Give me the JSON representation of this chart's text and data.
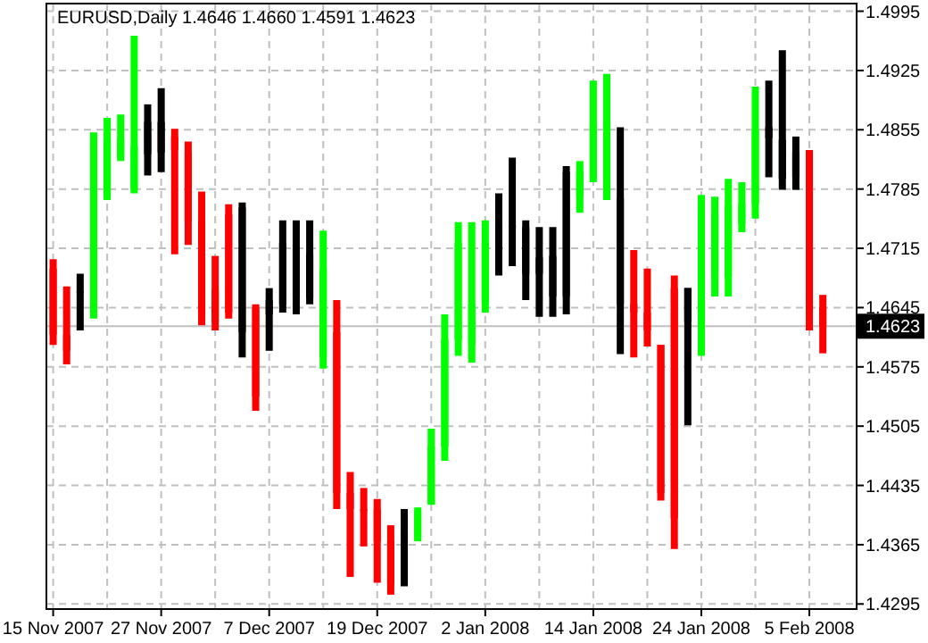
{
  "chart_data": {
    "type": "candlestick",
    "title": "EURUSD,Daily  1.4646 1.4660 1.4591 1.4623",
    "categories": [
      "15 Nov 2007",
      null,
      null,
      null,
      null,
      null,
      null,
      null,
      "27 Nov 2007",
      null,
      null,
      null,
      null,
      null,
      null,
      null,
      "7 Dec 2007",
      null,
      null,
      null,
      null,
      null,
      null,
      null,
      "19 Dec 2007",
      null,
      null,
      null,
      null,
      null,
      null,
      null,
      "2 Jan 2008",
      null,
      null,
      null,
      null,
      null,
      null,
      null,
      "14 Jan 2008",
      null,
      null,
      null,
      null,
      null,
      null,
      null,
      "24 Jan 2008",
      null,
      null,
      null,
      null,
      null,
      null,
      null,
      "5 Feb 2008",
      null
    ],
    "ohlc": [
      [
        1.4691,
        1.4702,
        1.4601,
        1.4613
      ],
      [
        1.4613,
        1.467,
        1.4578,
        1.4594
      ],
      [
        1.4664,
        1.4685,
        1.4618,
        1.4664
      ],
      [
        1.4637,
        1.4852,
        1.4632,
        1.4835
      ],
      [
        1.4776,
        1.4869,
        1.4772,
        1.4845
      ],
      [
        1.4822,
        1.4873,
        1.4818,
        1.4845
      ],
      [
        1.4784,
        1.4966,
        1.478,
        1.4835
      ],
      [
        1.4826,
        1.4885,
        1.4801,
        1.4864
      ],
      [
        1.4864,
        1.4904,
        1.4805,
        1.4828
      ],
      [
        1.4847,
        1.4856,
        1.4708,
        1.4831
      ],
      [
        1.4828,
        1.4841,
        1.4719,
        1.4746
      ],
      [
        1.4746,
        1.4782,
        1.4624,
        1.4634
      ],
      [
        1.4666,
        1.4706,
        1.4618,
        1.4628
      ],
      [
        1.4755,
        1.4767,
        1.4632,
        1.4639
      ],
      [
        1.4763,
        1.4769,
        1.4586,
        1.4616
      ],
      [
        1.4645,
        1.4649,
        1.4523,
        1.454
      ],
      [
        1.4654,
        1.4668,
        1.4594,
        1.4637
      ],
      [
        1.4649,
        1.4748,
        1.4639,
        1.4721
      ],
      [
        1.4719,
        1.4748,
        1.4637,
        1.4656
      ],
      [
        1.4656,
        1.4748,
        1.4649,
        1.4708
      ],
      [
        1.4586,
        1.4736,
        1.4573,
        1.4691
      ],
      [
        1.4616,
        1.4654,
        1.4407,
        1.4426
      ],
      [
        1.4426,
        1.4451,
        1.4327,
        1.4407
      ],
      [
        1.4407,
        1.4432,
        1.4363,
        1.4407
      ],
      [
        1.4407,
        1.4419,
        1.432,
        1.4369
      ],
      [
        1.4369,
        1.4388,
        1.4306,
        1.4318
      ],
      [
        1.4318,
        1.4407,
        1.4316,
        1.4379
      ],
      [
        1.4371,
        1.4409,
        1.4369,
        1.4405
      ],
      [
        1.4413,
        1.4502,
        1.4412,
        1.4481
      ],
      [
        1.4481,
        1.4637,
        1.4464,
        1.4607
      ],
      [
        1.4607,
        1.4746,
        1.4588,
        1.4721
      ],
      [
        1.4601,
        1.4746,
        1.458,
        1.4649
      ],
      [
        1.4651,
        1.4748,
        1.4639,
        1.4721
      ],
      [
        1.4721,
        1.478,
        1.4683,
        1.4742
      ],
      [
        1.4742,
        1.4822,
        1.4694,
        1.474
      ],
      [
        1.474,
        1.4748,
        1.4654,
        1.4685
      ],
      [
        1.4685,
        1.474,
        1.4634,
        1.4704
      ],
      [
        1.4706,
        1.474,
        1.4634,
        1.4658
      ],
      [
        1.4658,
        1.4812,
        1.4637,
        1.4805
      ],
      [
        1.4776,
        1.4818,
        1.4757,
        1.4805
      ],
      [
        1.4797,
        1.4913,
        1.4793,
        1.4862
      ],
      [
        1.4774,
        1.4921,
        1.4772,
        1.4862
      ],
      [
        1.4774,
        1.4858,
        1.459,
        1.4649
      ],
      [
        1.4649,
        1.4713,
        1.4586,
        1.4639
      ],
      [
        1.4639,
        1.4691,
        1.4599,
        1.4618
      ],
      [
        1.4601,
        1.4601,
        1.4417,
        1.4426
      ],
      [
        1.4668,
        1.4683,
        1.436,
        1.4396
      ],
      [
        1.4668,
        1.4668,
        1.4506,
        1.4628
      ],
      [
        1.4628,
        1.4778,
        1.4588,
        1.4757
      ],
      [
        1.4681,
        1.4776,
        1.4658,
        1.4757
      ],
      [
        1.4681,
        1.4797,
        1.4658,
        1.4765
      ],
      [
        1.4744,
        1.4793,
        1.4734,
        1.4767
      ],
      [
        1.4767,
        1.4906,
        1.475,
        1.4854
      ],
      [
        1.4858,
        1.4913,
        1.4799,
        1.4845
      ],
      [
        1.4843,
        1.4949,
        1.4784,
        1.4797
      ],
      [
        1.4799,
        1.4847,
        1.4784,
        1.4828
      ],
      [
        1.4828,
        1.4831,
        1.4618,
        1.4643
      ],
      [
        1.4646,
        1.466,
        1.4591,
        1.4623
      ]
    ],
    "colors": [
      "#ff0000",
      "#ff0000",
      "#000000",
      "#00ff00",
      "#00ff00",
      "#00ff00",
      "#00ff00",
      "#000000",
      "#000000",
      "#ff0000",
      "#ff0000",
      "#ff0000",
      "#ff0000",
      "#ff0000",
      "#000000",
      "#ff0000",
      "#000000",
      "#000000",
      "#000000",
      "#000000",
      "#00ff00",
      "#ff0000",
      "#ff0000",
      "#ff0000",
      "#ff0000",
      "#ff0000",
      "#000000",
      "#00ff00",
      "#00ff00",
      "#00ff00",
      "#00ff00",
      "#00ff00",
      "#00ff00",
      "#000000",
      "#000000",
      "#000000",
      "#000000",
      "#000000",
      "#000000",
      "#00ff00",
      "#00ff00",
      "#00ff00",
      "#000000",
      "#ff0000",
      "#ff0000",
      "#ff0000",
      "#ff0000",
      "#000000",
      "#00ff00",
      "#00ff00",
      "#00ff00",
      "#00ff00",
      "#00ff00",
      "#000000",
      "#000000",
      "#000000",
      "#ff0000",
      "#ff0000"
    ],
    "ylim": [
      1.4289,
      1.5004
    ],
    "yticks": [
      1.4995,
      1.4925,
      1.4855,
      1.4785,
      1.4715,
      1.4645,
      1.4575,
      1.4505,
      1.4435,
      1.4365,
      1.4295
    ],
    "ref_lines": [
      {
        "axis": "y",
        "value": 1.4623,
        "label": "1.4623",
        "color": "#c0c0c0"
      }
    ],
    "grid": true
  }
}
